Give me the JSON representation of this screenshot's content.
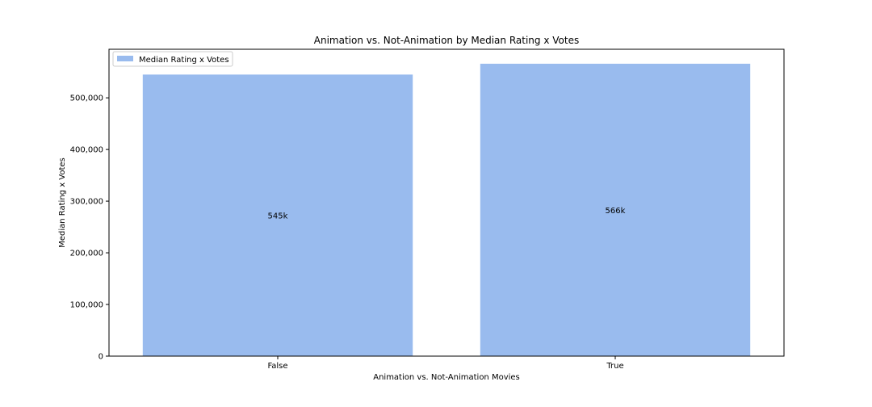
{
  "chart_data": {
    "type": "bar",
    "title": "Animation vs. Not-Animation by Median Rating x Votes",
    "xlabel": "Animation vs. Not-Animation Movies",
    "ylabel": "Median Rating x Votes",
    "categories": [
      "False",
      "True"
    ],
    "series": [
      {
        "name": "Median Rating x Votes",
        "values": [
          545000,
          566000
        ],
        "data_labels": [
          "545k",
          "566k"
        ],
        "color": "#99bbee"
      }
    ],
    "ylim": [
      0,
      594000
    ],
    "yticks": [
      0,
      100000,
      200000,
      300000,
      400000,
      500000
    ],
    "ytick_labels": [
      "0",
      "100,000",
      "200,000",
      "300,000",
      "400,000",
      "500,000"
    ],
    "grid": false,
    "legend_position": "top-left"
  }
}
